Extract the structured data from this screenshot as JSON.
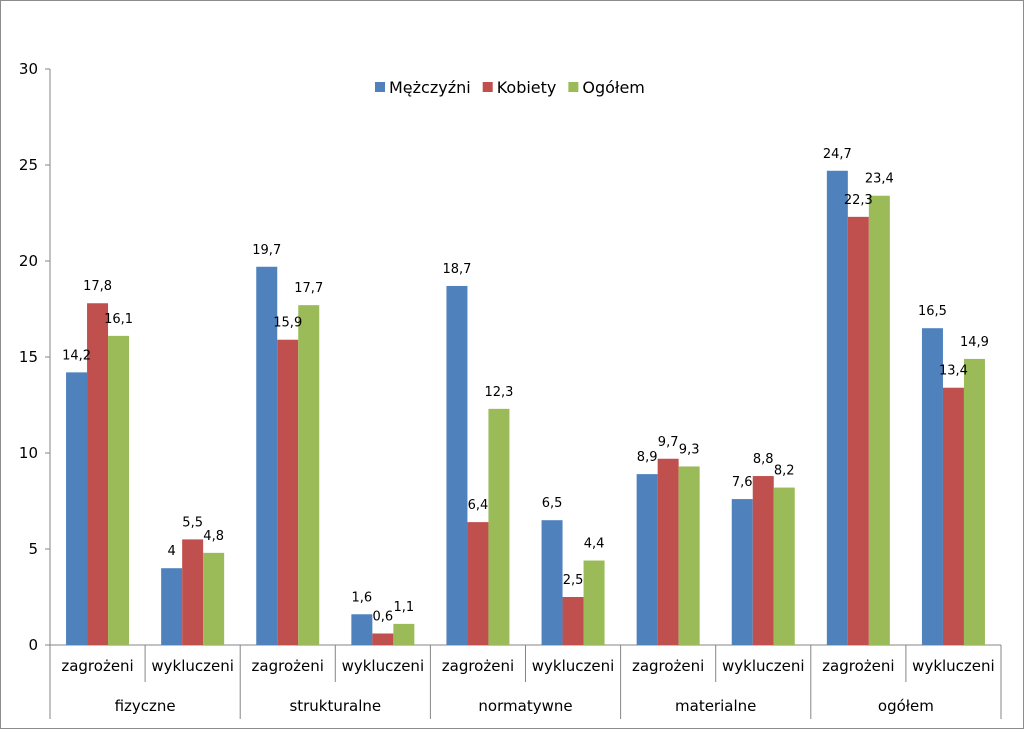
{
  "chart_data": {
    "type": "bar",
    "ylim": [
      0,
      30
    ],
    "yticks": [
      "0",
      "5",
      "10",
      "15",
      "20",
      "25",
      "30"
    ],
    "ytick_values": [
      0,
      5,
      10,
      15,
      20,
      25,
      30
    ],
    "grid": false,
    "legend_position": "top",
    "groups": [
      {
        "label": "fizyczne",
        "subcategories": [
          "zagrożeni",
          "wykluczeni"
        ]
      },
      {
        "label": "strukturalne",
        "subcategories": [
          "zagrożeni",
          "wykluczeni"
        ]
      },
      {
        "label": "normatywne",
        "subcategories": [
          "zagrożeni",
          "wykluczeni"
        ]
      },
      {
        "label": "materialne",
        "subcategories": [
          "zagrożeni",
          "wykluczeni"
        ]
      },
      {
        "label": "ogółem",
        "subcategories": [
          "zagrożeni",
          "wykluczeni"
        ]
      }
    ],
    "series": [
      {
        "name": "Mężczyźni",
        "color": "#4F81BD",
        "values": [
          14.2,
          4,
          19.7,
          1.6,
          18.7,
          6.5,
          8.9,
          7.6,
          24.7,
          16.5
        ],
        "labels": [
          "14,2",
          "4",
          "19,7",
          "1,6",
          "18,7",
          "6,5",
          "8,9",
          "7,6",
          "24,7",
          "16,5"
        ]
      },
      {
        "name": "Kobiety",
        "color": "#C0504D",
        "values": [
          17.8,
          5.5,
          15.9,
          0.6,
          6.4,
          2.5,
          9.7,
          8.8,
          22.3,
          13.4
        ],
        "labels": [
          "17,8",
          "5,5",
          "15,9",
          "0,6",
          "6,4",
          "2,5",
          "9,7",
          "8,8",
          "22,3",
          "13,4"
        ]
      },
      {
        "name": "Ogółem",
        "color": "#9BBB59",
        "values": [
          16.1,
          4.8,
          17.7,
          1.1,
          12.3,
          4.4,
          9.3,
          8.2,
          23.4,
          14.9
        ],
        "labels": [
          "16,1",
          "4,8",
          "17,7",
          "1,1",
          "12,3",
          "4,4",
          "9,3",
          "8,2",
          "23,4",
          "14,9"
        ]
      }
    ]
  }
}
